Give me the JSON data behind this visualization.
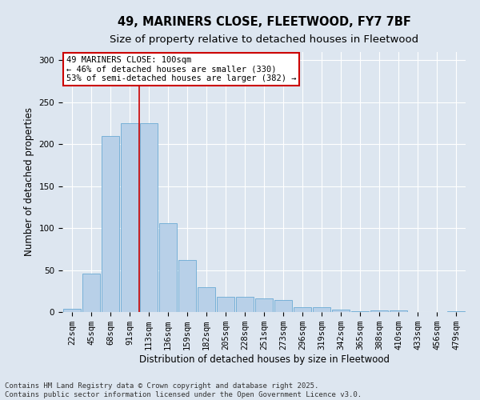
{
  "title_line1": "49, MARINERS CLOSE, FLEETWOOD, FY7 7BF",
  "title_line2": "Size of property relative to detached houses in Fleetwood",
  "xlabel": "Distribution of detached houses by size in Fleetwood",
  "ylabel": "Number of detached properties",
  "categories": [
    "22sqm",
    "45sqm",
    "68sqm",
    "91sqm",
    "113sqm",
    "136sqm",
    "159sqm",
    "182sqm",
    "205sqm",
    "228sqm",
    "251sqm",
    "273sqm",
    "296sqm",
    "319sqm",
    "342sqm",
    "365sqm",
    "388sqm",
    "410sqm",
    "433sqm",
    "456sqm",
    "479sqm"
  ],
  "values": [
    4,
    46,
    210,
    225,
    225,
    106,
    62,
    30,
    18,
    18,
    16,
    14,
    6,
    6,
    3,
    1,
    2,
    2,
    0,
    0,
    1
  ],
  "bar_color": "#b8d0e8",
  "bar_edge_color": "#6aaad4",
  "vline_x": 3.5,
  "vline_color": "#cc0000",
  "annotation_text": "49 MARINERS CLOSE: 100sqm\n← 46% of detached houses are smaller (330)\n53% of semi-detached houses are larger (382) →",
  "annotation_box_facecolor": "#ffffff",
  "annotation_box_edgecolor": "#cc0000",
  "ylim": [
    0,
    310
  ],
  "yticks": [
    0,
    50,
    100,
    150,
    200,
    250,
    300
  ],
  "background_color": "#dde6f0",
  "grid_color": "#ffffff",
  "footer_line1": "Contains HM Land Registry data © Crown copyright and database right 2025.",
  "footer_line2": "Contains public sector information licensed under the Open Government Licence v3.0.",
  "title_fontsize": 10.5,
  "subtitle_fontsize": 9.5,
  "axis_label_fontsize": 8.5,
  "tick_fontsize": 7.5,
  "annotation_fontsize": 7.5,
  "footer_fontsize": 6.5
}
